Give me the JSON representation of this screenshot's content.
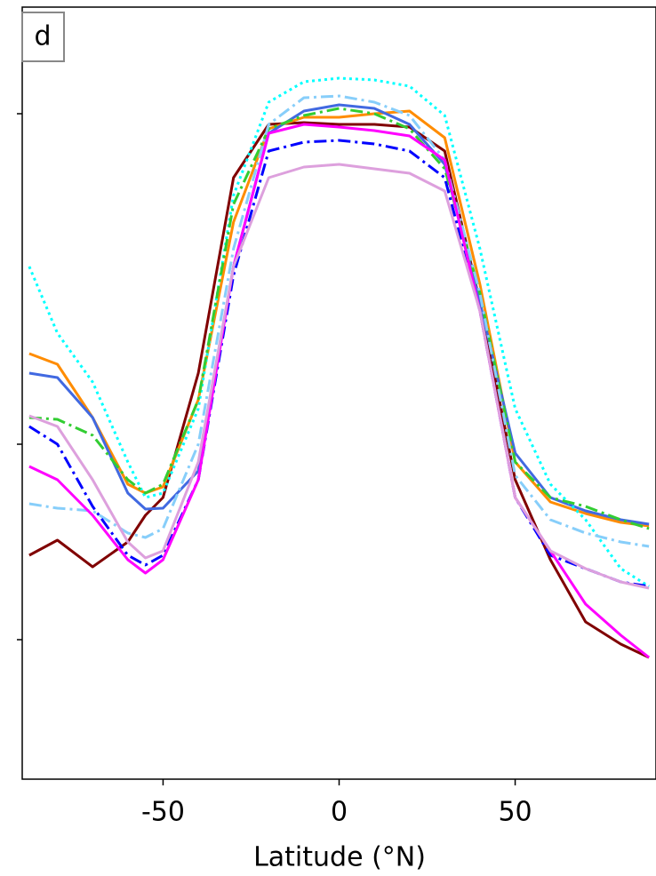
{
  "chart_data": {
    "type": "line",
    "panel_label": "d",
    "x_label": "Latitude (°N)",
    "xlim": [
      -90,
      90
    ],
    "xticks": [
      -50,
      0,
      50
    ],
    "ylim": [
      0,
      869
    ],
    "yticks": [
      157,
      377,
      749
    ],
    "x": [
      -88,
      -80,
      -70,
      -60,
      -55,
      -50,
      -40,
      -30,
      -20,
      -10,
      0,
      10,
      20,
      30,
      40,
      50,
      60,
      70,
      80,
      88
    ],
    "series": [
      {
        "color": "#800000",
        "linestyle": "solid",
        "values": [
          252,
          269,
          239,
          267,
          297,
          317,
          457,
          677,
          737,
          739,
          737,
          737,
          734,
          707,
          537,
          337,
          247,
          177,
          152,
          137
        ]
      },
      {
        "color": "#ff8c00",
        "linestyle": "solid",
        "values": [
          479,
          467,
          407,
          332,
          322,
          329,
          427,
          627,
          732,
          745,
          745,
          749,
          752,
          722,
          557,
          357,
          312,
          299,
          289,
          285
        ]
      },
      {
        "color": "#4169e1",
        "linestyle": "solid",
        "values": [
          457,
          452,
          407,
          322,
          304,
          305,
          347,
          577,
          727,
          752,
          759,
          755,
          737,
          692,
          537,
          367,
          317,
          302,
          292,
          287
        ]
      },
      {
        "color": "#00ffff",
        "linestyle": "dotted",
        "values": [
          577,
          502,
          447,
          357,
          317,
          322,
          417,
          657,
          762,
          785,
          789,
          787,
          780,
          747,
          597,
          417,
          332,
          292,
          237,
          217
        ]
      },
      {
        "color": "#32cd32",
        "linestyle": "dashdot",
        "values": [
          407,
          405,
          387,
          337,
          322,
          332,
          427,
          647,
          732,
          747,
          755,
          749,
          732,
          687,
          547,
          357,
          317,
          307,
          292,
          282
        ]
      },
      {
        "color": "#87cefa",
        "linestyle": "dashdot",
        "values": [
          310,
          305,
          302,
          277,
          272,
          282,
          377,
          597,
          737,
          767,
          769,
          762,
          747,
          697,
          547,
          342,
          292,
          277,
          267,
          262
        ]
      },
      {
        "color": "#0000ff",
        "linestyle": "dashdot",
        "values": [
          397,
          377,
          307,
          252,
          241,
          252,
          337,
          567,
          707,
          717,
          719,
          715,
          707,
          677,
          527,
          317,
          252,
          237,
          222,
          217
        ]
      },
      {
        "color": "#ff00ff",
        "linestyle": "solid",
        "values": [
          352,
          337,
          297,
          247,
          232,
          247,
          337,
          577,
          727,
          737,
          734,
          730,
          724,
          697,
          527,
          317,
          257,
          197,
          162,
          137
        ]
      },
      {
        "color": "#dda0dd",
        "linestyle": "solid",
        "values": [
          409,
          397,
          337,
          267,
          249,
          257,
          357,
          577,
          677,
          689,
          692,
          687,
          682,
          662,
          527,
          317,
          257,
          237,
          222,
          215
        ]
      }
    ]
  }
}
